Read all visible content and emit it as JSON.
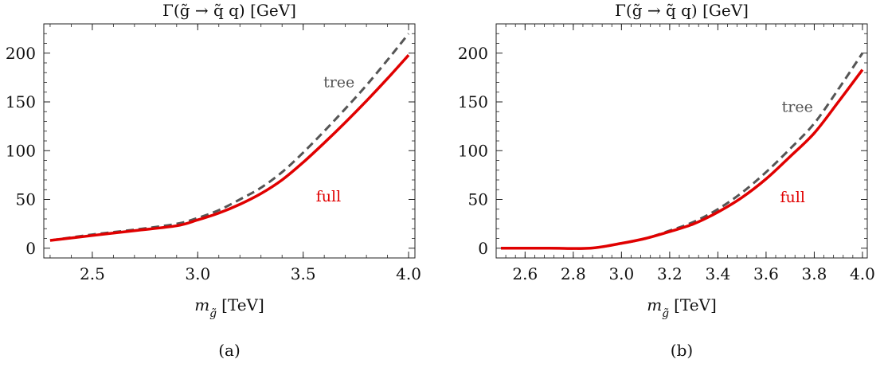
{
  "chart_data": [
    {
      "type": "line",
      "title": "Γ(g̃ → q̃ q) [GeV]",
      "xlabel": "m_g̃ [TeV]",
      "xlabel_main": "m",
      "xlabel_sub": "g̃",
      "xlabel_unit": "[TeV]",
      "caption": "(a)",
      "xlim": [
        2.27,
        4.03
      ],
      "ylim": [
        -10,
        230
      ],
      "xticks": [
        2.5,
        3.0,
        3.5,
        4.0
      ],
      "xtick_labels": [
        "2.5",
        "3.0",
        "3.5",
        "4.0"
      ],
      "yticks": [
        0,
        50,
        100,
        150,
        200
      ],
      "ytick_labels": [
        "0",
        "50",
        "100",
        "150",
        "200"
      ],
      "grid": false,
      "series": [
        {
          "name": "tree",
          "color": "#555555",
          "dash": "dashed",
          "x": [
            2.3,
            2.5,
            2.7,
            2.9,
            3.0,
            3.1,
            3.2,
            3.3,
            3.4,
            3.5,
            3.6,
            3.7,
            3.8,
            3.9,
            4.0
          ],
          "y": [
            8,
            14,
            19,
            25,
            31,
            39,
            50,
            62,
            78,
            98,
            120,
            143,
            167,
            193,
            220
          ]
        },
        {
          "name": "full",
          "color": "#e00000",
          "dash": "solid",
          "x": [
            2.3,
            2.5,
            2.7,
            2.9,
            3.0,
            3.1,
            3.2,
            3.3,
            3.4,
            3.5,
            3.6,
            3.7,
            3.8,
            3.9,
            4.0
          ],
          "y": [
            8,
            13,
            18,
            23,
            29,
            36,
            45,
            56,
            70,
            88,
            108,
            129,
            151,
            174,
            198
          ]
        }
      ],
      "annotations": [
        {
          "text": "tree",
          "x": 3.67,
          "y": 165,
          "series": "tree"
        },
        {
          "text": "full",
          "x": 3.62,
          "y": 48,
          "series": "full"
        }
      ]
    },
    {
      "type": "line",
      "title": "Γ(g̃ → q̃ q) [GeV]",
      "xlabel": "m_g̃ [TeV]",
      "xlabel_main": "m",
      "xlabel_sub": "g̃",
      "xlabel_unit": "[TeV]",
      "caption": "(b)",
      "xlim": [
        2.48,
        4.02
      ],
      "ylim": [
        -10,
        230
      ],
      "xticks": [
        2.6,
        2.8,
        3.0,
        3.2,
        3.4,
        3.6,
        3.8,
        4.0
      ],
      "xtick_labels": [
        "2.6",
        "2.8",
        "3.0",
        "3.2",
        "3.4",
        "3.6",
        "3.8",
        "4.0"
      ],
      "yticks": [
        0,
        50,
        100,
        150,
        200
      ],
      "ytick_labels": [
        "0",
        "50",
        "100",
        "150",
        "200"
      ],
      "grid": false,
      "series": [
        {
          "name": "tree",
          "color": "#555555",
          "dash": "dashed",
          "x": [
            2.5,
            2.7,
            2.87,
            3.0,
            3.1,
            3.2,
            3.3,
            3.4,
            3.5,
            3.6,
            3.7,
            3.8,
            3.9,
            4.0
          ],
          "y": [
            0,
            0,
            0,
            5,
            10,
            18,
            27,
            40,
            57,
            78,
            102,
            128,
            163,
            200
          ]
        },
        {
          "name": "full",
          "color": "#e00000",
          "dash": "solid",
          "x": [
            2.5,
            2.7,
            2.87,
            3.0,
            3.1,
            3.2,
            3.3,
            3.4,
            3.5,
            3.6,
            3.7,
            3.8,
            3.9,
            4.0
          ],
          "y": [
            0,
            0,
            0,
            5,
            10,
            17,
            25,
            37,
            52,
            71,
            94,
            118,
            150,
            183
          ]
        }
      ],
      "annotations": [
        {
          "text": "tree",
          "x": 3.73,
          "y": 140,
          "series": "tree"
        },
        {
          "text": "full",
          "x": 3.71,
          "y": 47,
          "series": "full"
        }
      ]
    }
  ]
}
